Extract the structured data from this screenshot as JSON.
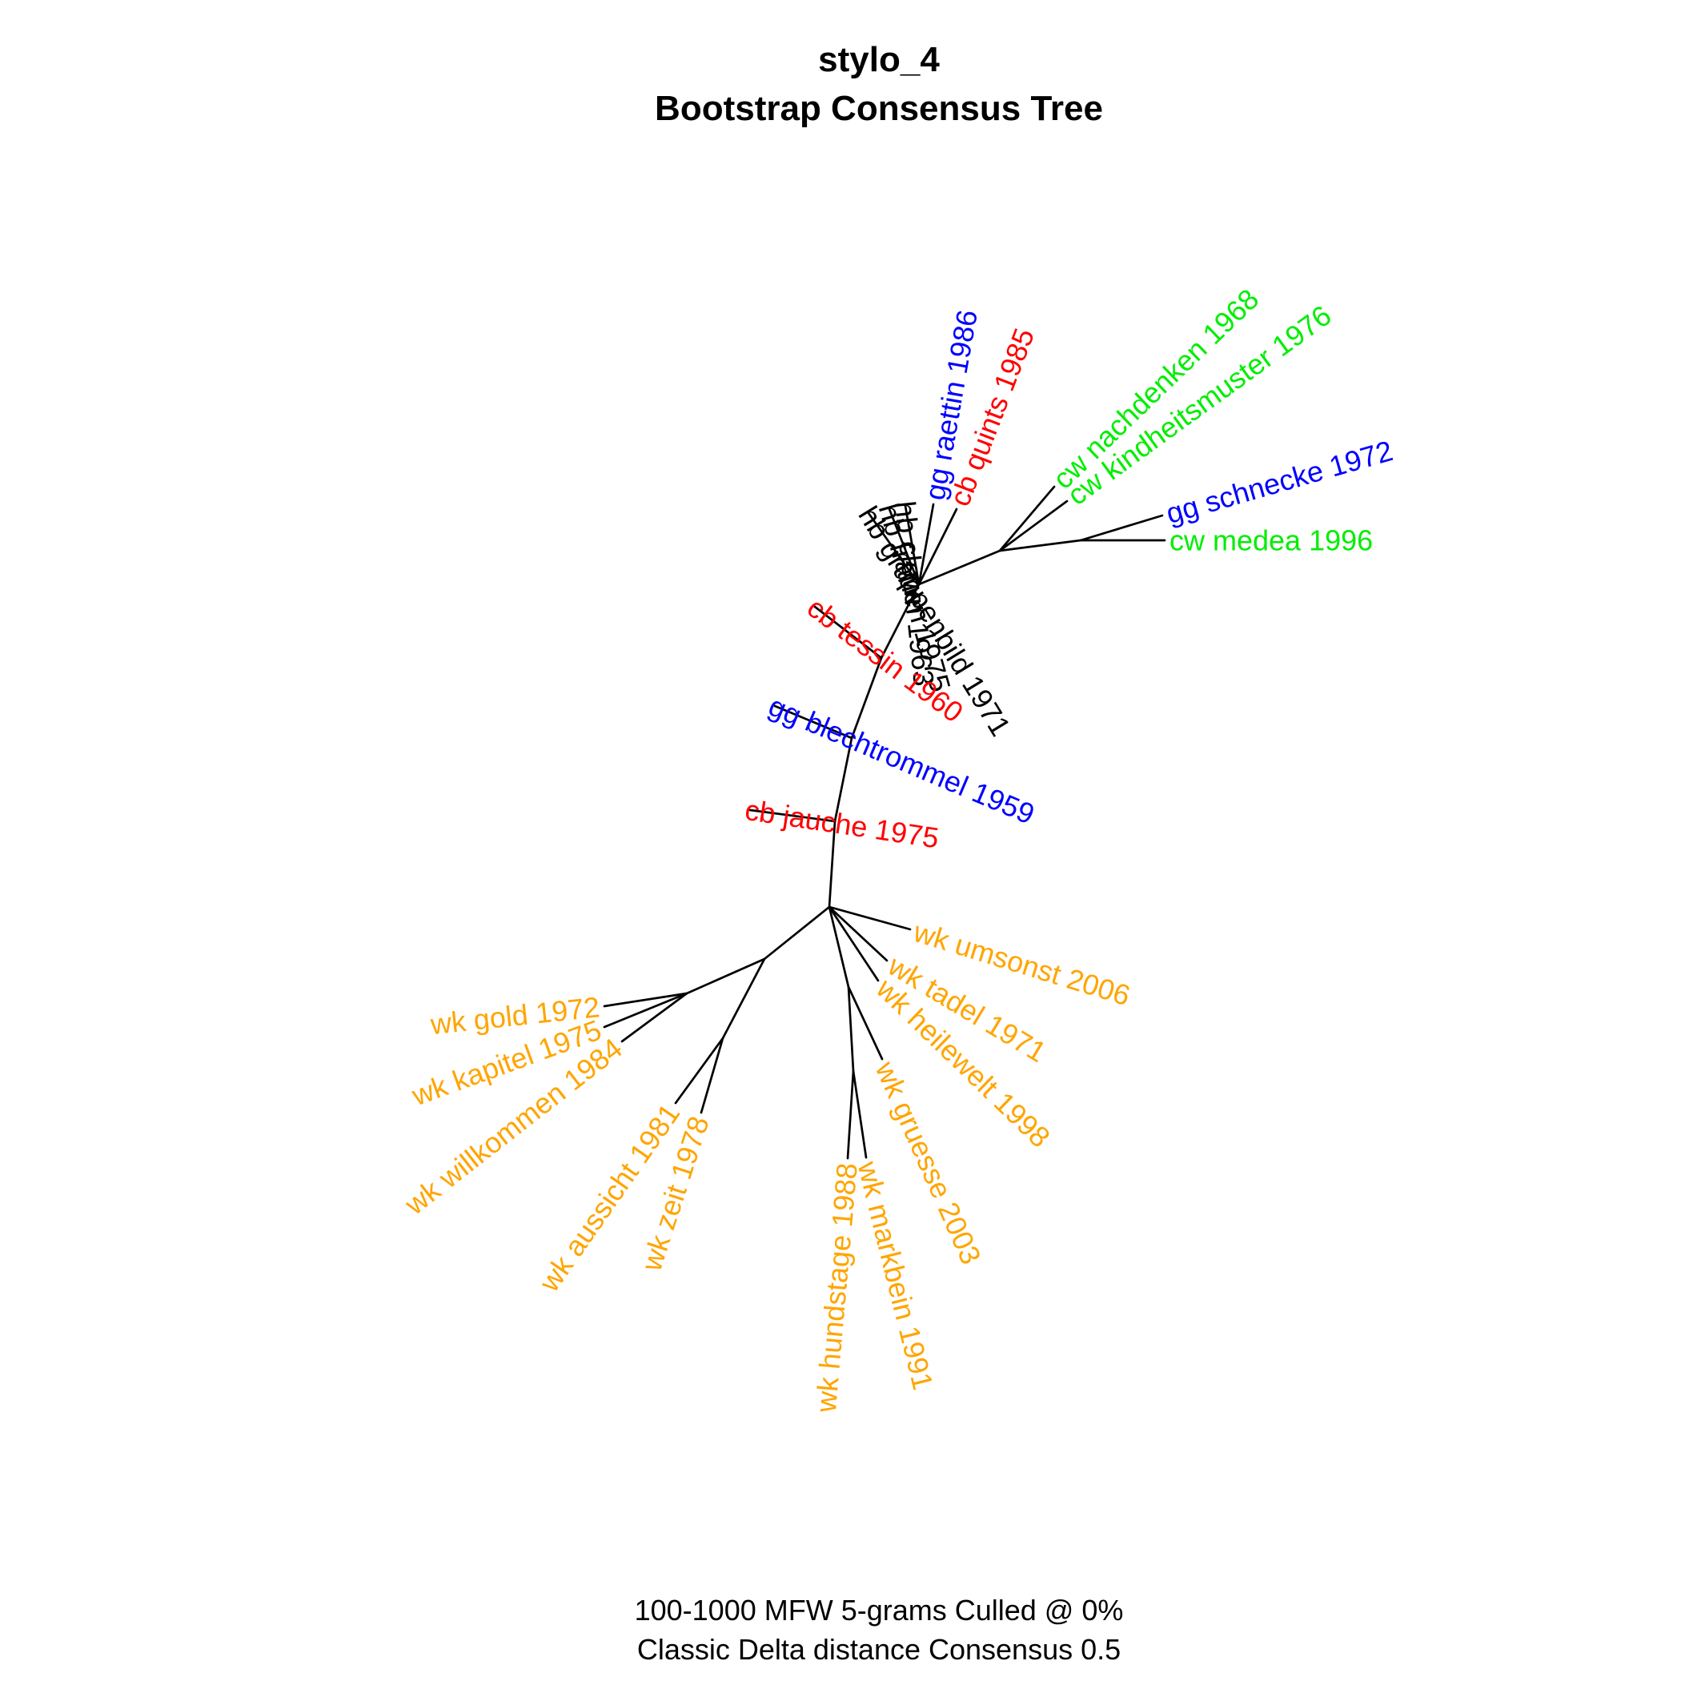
{
  "title": {
    "line1": "stylo_4",
    "line2": "Bootstrap Consensus Tree"
  },
  "caption": {
    "line1": "100-1000 MFW 5-grams Culled @ 0%",
    "line2": "Classic Delta distance Consensus 0.5"
  },
  "colors": {
    "hb": "#000000",
    "gg": "#0000ff",
    "cb": "#ff0000",
    "cw": "#00ee00",
    "wk": "#ffa500",
    "edge": "#000000"
  },
  "tree": {
    "type": "unrooted-consensus-tree",
    "leaves": [
      {
        "id": "hb_gruppenbild",
        "label": "hb gruppenbild 1971",
        "group": "hb"
      },
      {
        "id": "hb_frauen",
        "label": "hb frauen 1975",
        "group": "hb"
      },
      {
        "id": "hb_clown",
        "label": "hb clown 1963",
        "group": "hb"
      },
      {
        "id": "gg_raettin",
        "label": "gg raettin 1986",
        "group": "gg"
      },
      {
        "id": "cb_quints",
        "label": "cb quints 1985",
        "group": "cb"
      },
      {
        "id": "cw_nachdenken",
        "label": "cw nachdenken 1968",
        "group": "cw"
      },
      {
        "id": "cw_kindheitsmuster",
        "label": "cw kindheitsmuster 1976",
        "group": "cw"
      },
      {
        "id": "gg_schnecke",
        "label": "gg schnecke 1972",
        "group": "gg"
      },
      {
        "id": "cw_medea",
        "label": "cw medea 1996",
        "group": "cw"
      },
      {
        "id": "cb_tessin",
        "label": "cb tessin 1960",
        "group": "cb"
      },
      {
        "id": "gg_blechtrommel",
        "label": "gg blechtrommel 1959",
        "group": "gg"
      },
      {
        "id": "cb_jauche",
        "label": "cb jauche 1975",
        "group": "cb"
      },
      {
        "id": "wk_umsonst",
        "label": "wk umsonst 2006",
        "group": "wk"
      },
      {
        "id": "wk_tadel",
        "label": "wk tadel 1971",
        "group": "wk"
      },
      {
        "id": "wk_heilewelt",
        "label": "wk heilewelt 1998",
        "group": "wk"
      },
      {
        "id": "wk_gruesse",
        "label": "wk gruesse 2003",
        "group": "wk"
      },
      {
        "id": "wk_markbein",
        "label": "wk markbein 1991",
        "group": "wk"
      },
      {
        "id": "wk_hundstage",
        "label": "wk hundstage 1988",
        "group": "wk"
      },
      {
        "id": "wk_zeit",
        "label": "wk zeit 1978",
        "group": "wk"
      },
      {
        "id": "wk_aussicht",
        "label": "wk aussicht 1981",
        "group": "wk"
      },
      {
        "id": "wk_willkommen",
        "label": "wk willkommen 1984",
        "group": "wk"
      },
      {
        "id": "wk_kapitel",
        "label": "wk kapitel 1975",
        "group": "wk"
      },
      {
        "id": "wk_gold",
        "label": "wk gold 1972",
        "group": "wk"
      }
    ]
  }
}
